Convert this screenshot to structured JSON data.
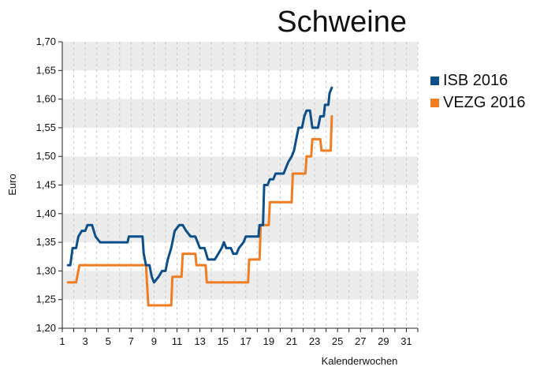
{
  "chart_data": {
    "type": "line",
    "title": "Schweine",
    "xlabel": "Kalenderwochen",
    "ylabel": "Euro",
    "xlim": [
      1,
      32
    ],
    "ylim": [
      1.2,
      1.7
    ],
    "x_ticks": [
      1,
      3,
      5,
      7,
      9,
      11,
      13,
      15,
      17,
      19,
      21,
      23,
      25,
      27,
      29,
      31
    ],
    "y_ticks": [
      "1,20",
      "1,25",
      "1,30",
      "1,35",
      "1,40",
      "1,45",
      "1,50",
      "1,55",
      "1,60",
      "1,65",
      "1,70"
    ],
    "legend_position": "right",
    "colors": {
      "ISB 2016": "#0d4f8b",
      "VEZG 2016": "#f07d22"
    },
    "series": [
      {
        "name": "ISB 2016",
        "points": [
          [
            1.5,
            1.31
          ],
          [
            1.7,
            1.31
          ],
          [
            1.9,
            1.34
          ],
          [
            2.2,
            1.34
          ],
          [
            2.4,
            1.36
          ],
          [
            2.7,
            1.37
          ],
          [
            3.0,
            1.37
          ],
          [
            3.2,
            1.38
          ],
          [
            3.6,
            1.38
          ],
          [
            3.9,
            1.36
          ],
          [
            4.3,
            1.35
          ],
          [
            6.7,
            1.35
          ],
          [
            6.8,
            1.36
          ],
          [
            8.0,
            1.36
          ],
          [
            8.1,
            1.33
          ],
          [
            8.3,
            1.31
          ],
          [
            8.6,
            1.31
          ],
          [
            8.8,
            1.29
          ],
          [
            9.0,
            1.28
          ],
          [
            9.4,
            1.29
          ],
          [
            9.7,
            1.3
          ],
          [
            10.0,
            1.3
          ],
          [
            10.2,
            1.32
          ],
          [
            10.5,
            1.34
          ],
          [
            10.8,
            1.37
          ],
          [
            11.2,
            1.38
          ],
          [
            11.5,
            1.38
          ],
          [
            11.8,
            1.37
          ],
          [
            12.2,
            1.36
          ],
          [
            12.6,
            1.36
          ],
          [
            13.0,
            1.34
          ],
          [
            13.4,
            1.34
          ],
          [
            13.7,
            1.32
          ],
          [
            14.3,
            1.32
          ],
          [
            14.6,
            1.33
          ],
          [
            14.9,
            1.34
          ],
          [
            15.1,
            1.35
          ],
          [
            15.3,
            1.34
          ],
          [
            15.7,
            1.34
          ],
          [
            15.9,
            1.33
          ],
          [
            16.2,
            1.33
          ],
          [
            16.4,
            1.34
          ],
          [
            16.8,
            1.35
          ],
          [
            17.0,
            1.36
          ],
          [
            18.1,
            1.36
          ],
          [
            18.2,
            1.38
          ],
          [
            18.5,
            1.38
          ],
          [
            18.6,
            1.45
          ],
          [
            18.9,
            1.45
          ],
          [
            19.1,
            1.46
          ],
          [
            19.4,
            1.46
          ],
          [
            19.6,
            1.47
          ],
          [
            20.3,
            1.47
          ],
          [
            20.5,
            1.48
          ],
          [
            20.7,
            1.49
          ],
          [
            21.0,
            1.5
          ],
          [
            21.2,
            1.51
          ],
          [
            21.4,
            1.53
          ],
          [
            21.6,
            1.55
          ],
          [
            21.9,
            1.55
          ],
          [
            22.1,
            1.57
          ],
          [
            22.3,
            1.58
          ],
          [
            22.6,
            1.58
          ],
          [
            22.8,
            1.55
          ],
          [
            23.3,
            1.55
          ],
          [
            23.5,
            1.57
          ],
          [
            23.8,
            1.57
          ],
          [
            23.9,
            1.59
          ],
          [
            24.2,
            1.59
          ],
          [
            24.3,
            1.61
          ],
          [
            24.5,
            1.62
          ]
        ]
      },
      {
        "name": "VEZG 2016",
        "points": [
          [
            1.5,
            1.28
          ],
          [
            2.2,
            1.28
          ],
          [
            2.5,
            1.31
          ],
          [
            8.3,
            1.31
          ],
          [
            8.5,
            1.24
          ],
          [
            10.5,
            1.24
          ],
          [
            10.6,
            1.29
          ],
          [
            11.4,
            1.29
          ],
          [
            11.5,
            1.33
          ],
          [
            12.6,
            1.33
          ],
          [
            12.7,
            1.31
          ],
          [
            13.5,
            1.31
          ],
          [
            13.6,
            1.28
          ],
          [
            17.2,
            1.28
          ],
          [
            17.3,
            1.32
          ],
          [
            18.2,
            1.32
          ],
          [
            18.3,
            1.38
          ],
          [
            19.0,
            1.38
          ],
          [
            19.1,
            1.42
          ],
          [
            21.0,
            1.42
          ],
          [
            21.1,
            1.47
          ],
          [
            22.2,
            1.47
          ],
          [
            22.3,
            1.5
          ],
          [
            22.7,
            1.5
          ],
          [
            22.8,
            1.53
          ],
          [
            23.5,
            1.53
          ],
          [
            23.6,
            1.51
          ],
          [
            24.4,
            1.51
          ],
          [
            24.5,
            1.57
          ]
        ]
      }
    ]
  }
}
